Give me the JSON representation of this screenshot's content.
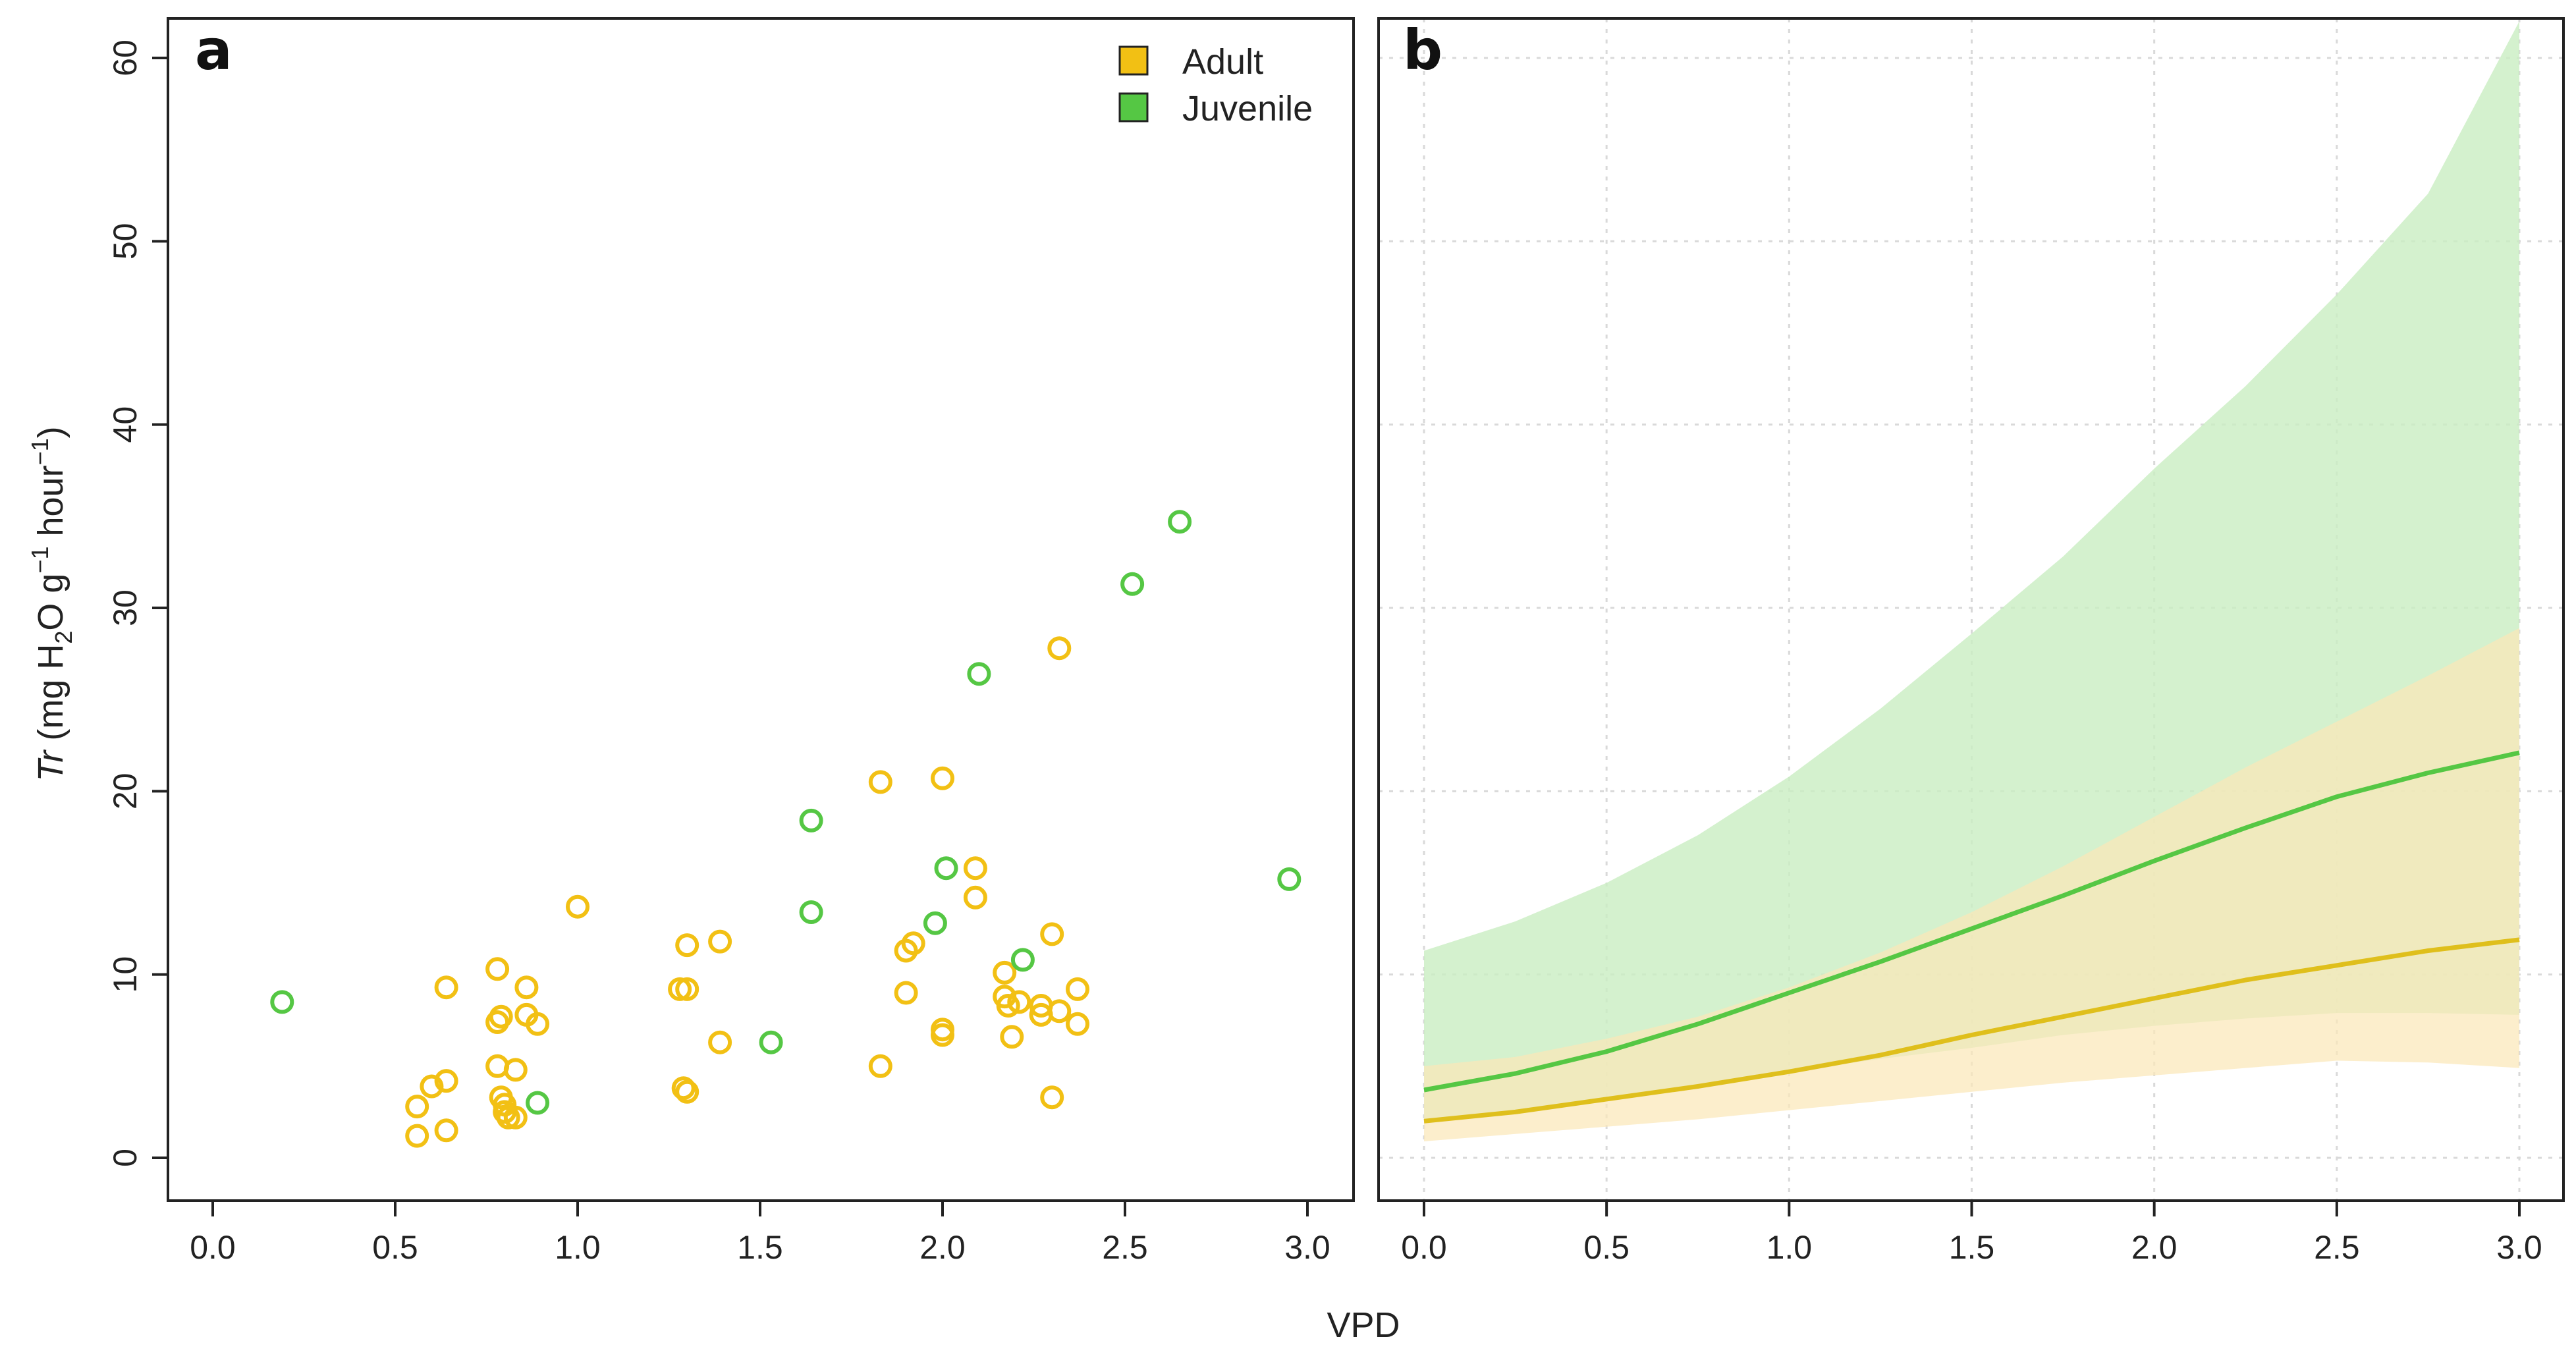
{
  "chart_data": [
    {
      "panel": "a",
      "type": "scatter",
      "xlabel": "VPD",
      "ylabel": {
        "pre": "Tr",
        "mid1": " (mg H",
        "sub": "2",
        "mid2": "O g",
        "sup1": "−1",
        "mid3": " hour",
        "sup2": "−1",
        "post": ")"
      },
      "xlim": [
        0,
        3.1
      ],
      "ylim": [
        0,
        62
      ],
      "xticks": [
        "0.0",
        "0.5",
        "1.0",
        "1.5",
        "2.0",
        "2.5",
        "3.0"
      ],
      "yticks": [
        "0",
        "10",
        "20",
        "30",
        "40",
        "50",
        "60"
      ],
      "legend_position": "top-right",
      "series": [
        {
          "name": "Adult",
          "color": "#f2c014",
          "points": [
            [
              0.56,
              2.8
            ],
            [
              0.56,
              1.2
            ],
            [
              0.6,
              3.9
            ],
            [
              0.64,
              4.2
            ],
            [
              0.64,
              9.3
            ],
            [
              0.64,
              1.5
            ],
            [
              0.78,
              10.3
            ],
            [
              0.78,
              7.4
            ],
            [
              0.79,
              7.7
            ],
            [
              0.78,
              5.0
            ],
            [
              0.79,
              3.3
            ],
            [
              0.8,
              2.9
            ],
            [
              0.8,
              2.5
            ],
            [
              0.81,
              2.2
            ],
            [
              0.83,
              4.8
            ],
            [
              0.83,
              2.2
            ],
            [
              0.86,
              9.3
            ],
            [
              0.86,
              7.8
            ],
            [
              0.89,
              7.3
            ],
            [
              1.0,
              13.7
            ],
            [
              1.28,
              9.2
            ],
            [
              1.3,
              9.2
            ],
            [
              1.3,
              11.6
            ],
            [
              1.29,
              3.8
            ],
            [
              1.3,
              3.6
            ],
            [
              1.39,
              11.8
            ],
            [
              1.39,
              6.3
            ],
            [
              1.83,
              20.5
            ],
            [
              1.83,
              5.0
            ],
            [
              1.9,
              11.3
            ],
            [
              1.92,
              11.7
            ],
            [
              1.9,
              9.0
            ],
            [
              2.0,
              20.7
            ],
            [
              2.0,
              7.0
            ],
            [
              2.0,
              6.7
            ],
            [
              2.09,
              15.8
            ],
            [
              2.09,
              14.2
            ],
            [
              2.17,
              10.1
            ],
            [
              2.17,
              8.8
            ],
            [
              2.18,
              8.3
            ],
            [
              2.19,
              6.6
            ],
            [
              2.21,
              8.5
            ],
            [
              2.27,
              8.3
            ],
            [
              2.27,
              7.8
            ],
            [
              2.3,
              12.2
            ],
            [
              2.3,
              3.3
            ],
            [
              2.32,
              27.8
            ],
            [
              2.32,
              8.0
            ],
            [
              2.37,
              9.2
            ],
            [
              2.37,
              7.3
            ]
          ]
        },
        {
          "name": "Juvenile",
          "color": "#55c744",
          "points": [
            [
              0.19,
              8.5
            ],
            [
              0.89,
              3.0
            ],
            [
              1.53,
              6.3
            ],
            [
              1.64,
              18.4
            ],
            [
              1.64,
              13.4
            ],
            [
              1.98,
              12.8
            ],
            [
              2.01,
              15.8
            ],
            [
              2.1,
              26.4
            ],
            [
              2.22,
              10.8
            ],
            [
              2.52,
              31.3
            ],
            [
              2.65,
              34.7
            ],
            [
              2.95,
              15.2
            ]
          ]
        }
      ]
    },
    {
      "panel": "b",
      "type": "line",
      "xlabel": "VPD",
      "xlim": [
        -0.1,
        3.1
      ],
      "ylim": [
        0,
        62
      ],
      "xticks": [
        "0.0",
        "0.5",
        "1.0",
        "1.5",
        "2.0",
        "2.5",
        "3.0"
      ],
      "grid": true,
      "x": [
        0,
        0.25,
        0.5,
        0.75,
        1.0,
        1.25,
        1.5,
        1.75,
        2.0,
        2.25,
        2.5,
        2.75,
        3.0
      ],
      "series": [
        {
          "name": "Juvenile",
          "color": "#55c744",
          "band_color": "#c9edc2",
          "values": [
            3.7,
            4.6,
            5.8,
            7.3,
            9.0,
            10.7,
            12.5,
            14.3,
            16.2,
            18.0,
            19.7,
            21.0,
            22.1
          ],
          "lower": [
            2.0,
            2.5,
            3.1,
            3.9,
            4.7,
            5.4,
            6.0,
            6.7,
            7.2,
            7.6,
            7.9,
            7.9,
            7.8
          ],
          "upper": [
            11.3,
            12.9,
            15.0,
            17.6,
            20.8,
            24.5,
            28.6,
            32.8,
            37.6,
            42.1,
            47.1,
            52.6,
            62.0
          ]
        },
        {
          "name": "Adult",
          "color": "#dfbf1c",
          "band_color": "#fbe7b8",
          "values": [
            2.0,
            2.5,
            3.2,
            3.9,
            4.7,
            5.6,
            6.7,
            7.7,
            8.7,
            9.7,
            10.5,
            11.3,
            11.9
          ],
          "lower": [
            0.9,
            1.3,
            1.7,
            2.1,
            2.6,
            3.1,
            3.6,
            4.1,
            4.5,
            4.9,
            5.3,
            5.2,
            4.9
          ],
          "upper": [
            5.0,
            5.5,
            6.5,
            7.7,
            9.3,
            11.2,
            13.4,
            15.9,
            18.6,
            21.3,
            23.8,
            26.3,
            28.9
          ]
        }
      ]
    }
  ]
}
